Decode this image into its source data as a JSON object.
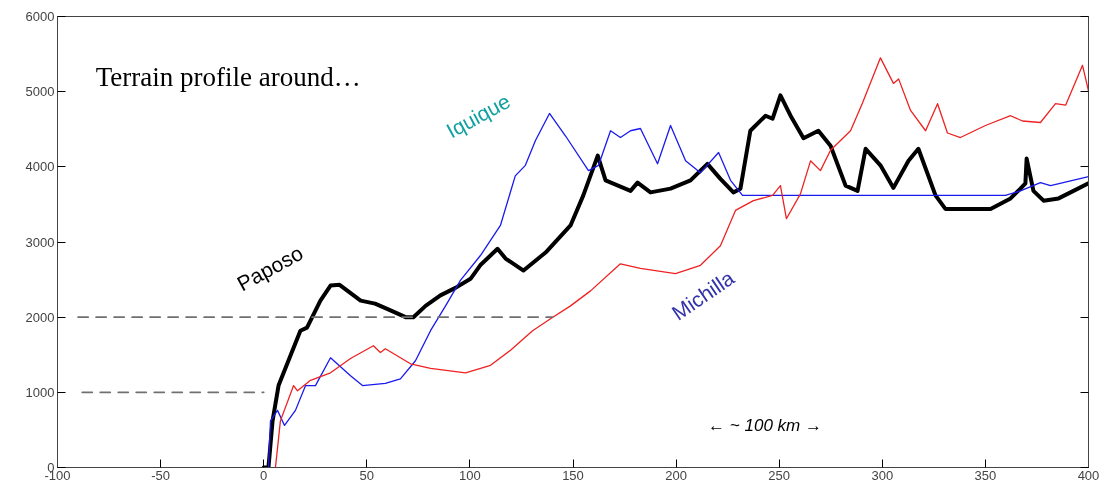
{
  "chart_data": {
    "type": "line",
    "title": "Terrain profile around…",
    "xlim": [
      -100,
      400
    ],
    "ylim": [
      0,
      6000
    ],
    "xticks": [
      -100,
      -50,
      0,
      50,
      100,
      150,
      200,
      250,
      300,
      350,
      400
    ],
    "yticks": [
      0,
      1000,
      2000,
      3000,
      4000,
      5000,
      6000
    ],
    "grid": false,
    "annotations": [
      "←    ~ 100 km    →"
    ],
    "series": [
      {
        "name": "Paposo",
        "color": "#000000",
        "x": [
          0,
          2.3,
          4.3,
          7.2,
          13,
          17.8,
          21,
          27.5,
          32.4,
          36.8,
          47,
          54,
          61.5,
          68.8,
          72.6,
          78.5,
          85.7,
          93,
          100.3,
          105,
          113.4,
          117.3,
          126,
          136.7,
          148.8,
          155,
          162,
          165.8,
          177.9,
          181.3,
          187.6,
          197.3,
          207,
          215.2,
          221.5,
          227.8,
          231.2,
          236,
          243.4,
          246.8,
          250.6,
          255.5,
          261.8,
          269,
          274.9,
          282.2,
          288,
          291.9,
          299.1,
          305.4,
          312.7,
          317.5,
          325.8,
          330.6,
          352.5,
          362.2,
          367,
          369.4,
          370,
          373.3,
          378.2,
          385.5,
          391.3,
          400
        ],
        "values": [
          0,
          0,
          620,
          1090,
          1490,
          1820,
          1860,
          2220,
          2420,
          2430,
          2220,
          2180,
          2090,
          2000,
          2000,
          2150,
          2290,
          2390,
          2510,
          2690,
          2910,
          2780,
          2620,
          2860,
          3220,
          3620,
          4150,
          3820,
          3680,
          3790,
          3660,
          3710,
          3820,
          4040,
          3840,
          3660,
          3710,
          4480,
          4680,
          4640,
          4950,
          4680,
          4380,
          4480,
          4280,
          3750,
          3680,
          4240,
          4020,
          3720,
          4080,
          4240,
          3620,
          3440,
          3440,
          3580,
          3710,
          3780,
          4110,
          3680,
          3550,
          3580,
          3660,
          3780
        ]
      },
      {
        "name": "Iquique",
        "color": "#1a1aee",
        "x": [
          2.3,
          3.3,
          6.7,
          10.1,
          15.4,
          20.3,
          25.1,
          32.4,
          42.1,
          47.9,
          59,
          66.3,
          73.6,
          80.9,
          88.2,
          95.4,
          105.1,
          114.8,
          122,
          126.9,
          131.8,
          138.6,
          146.4,
          157.5,
          162.4,
          168.2,
          173,
          177.9,
          182.7,
          191,
          197.3,
          204.6,
          211.8,
          220.6,
          226.4,
          232.2,
          238.5,
          359.7,
          367,
          376.7,
          381.6,
          400
        ],
        "values": [
          0,
          620,
          760,
          560,
          760,
          1090,
          1090,
          1460,
          1220,
          1090,
          1120,
          1180,
          1420,
          1820,
          2150,
          2490,
          2820,
          3220,
          3880,
          4020,
          4350,
          4710,
          4410,
          3950,
          4020,
          4480,
          4390,
          4480,
          4510,
          4040,
          4550,
          4080,
          3920,
          4190,
          3820,
          3620,
          3620,
          3620,
          3680,
          3790,
          3750,
          3870
        ]
      },
      {
        "name": "Michilla",
        "color": "#ee2222",
        "x": [
          5.7,
          8.1,
          14.5,
          16.4,
          22.7,
          32.4,
          42.1,
          53.2,
          56.6,
          59,
          71.2,
          80.9,
          97.9,
          110,
          119.7,
          130.4,
          139.1,
          148.8,
          158.5,
          173,
          182.7,
          199.7,
          211.8,
          221.5,
          228.8,
          237.5,
          246.8,
          250.6,
          253.5,
          260.3,
          265.2,
          270,
          274.9,
          284.6,
          290.4,
          299.1,
          305.4,
          307.9,
          313.7,
          321,
          326.8,
          331.6,
          337.9,
          350,
          362.2,
          368,
          376.7,
          384,
          388.9,
          397.1,
          400
        ],
        "values": [
          0,
          620,
          1090,
          1020,
          1160,
          1260,
          1450,
          1620,
          1530,
          1580,
          1380,
          1320,
          1260,
          1360,
          1560,
          1820,
          1980,
          2150,
          2350,
          2710,
          2650,
          2580,
          2690,
          2950,
          3420,
          3550,
          3620,
          3750,
          3310,
          3640,
          4080,
          3950,
          4220,
          4480,
          4850,
          5450,
          5110,
          5170,
          4750,
          4480,
          4840,
          4450,
          4390,
          4550,
          4680,
          4610,
          4590,
          4840,
          4820,
          5350,
          5010
        ]
      },
      {
        "color": "#707070",
        "line_style": "dashed",
        "x": [
          -90,
          140
        ],
        "values": [
          2000,
          2000
        ]
      },
      {
        "color": "#707070",
        "line_style": "dashed",
        "x": [
          -88,
          0
        ],
        "values": [
          1000,
          1000
        ]
      }
    ]
  }
}
